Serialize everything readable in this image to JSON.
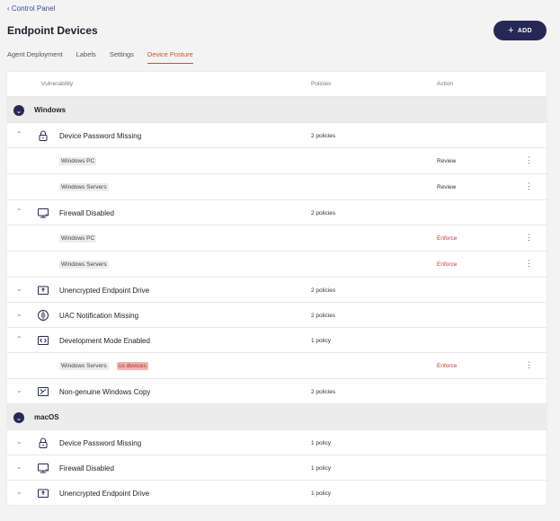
{
  "breadcrumb": "‹ Control Panel",
  "page_title": "Endpoint Devices",
  "add_button": {
    "label": "ADD",
    "icon": "plus-icon"
  },
  "tabs": [
    {
      "label": "Agent Deployment",
      "active": false
    },
    {
      "label": "Labels",
      "active": false
    },
    {
      "label": "Settings",
      "active": false
    },
    {
      "label": "Device Posture",
      "active": true
    }
  ],
  "table": {
    "columns": {
      "vulnerability": "Vulnerability",
      "policies": "Policies",
      "action": "Action"
    },
    "groups": [
      {
        "name": "Windows",
        "toggle_icon": "chevron-down-icon"
      },
      {
        "name": "macOS",
        "toggle_icon": "chevron-down-icon"
      }
    ],
    "rows": [
      {
        "kind": "group",
        "group": 0
      },
      {
        "kind": "vuln",
        "name": "Device Password Missing",
        "icon": "lock-icon",
        "policies": "2 policies",
        "expanded": true
      },
      {
        "kind": "sub",
        "tags": [
          "Windows PC"
        ],
        "action": "Review"
      },
      {
        "kind": "sub",
        "tags": [
          "Windows Servers"
        ],
        "action": "Review"
      },
      {
        "kind": "vuln",
        "name": "Firewall Disabled",
        "icon": "monitor-icon",
        "policies": "2 policies",
        "expanded": true
      },
      {
        "kind": "sub",
        "tags": [
          "Windows PC"
        ],
        "action": "Enforce"
      },
      {
        "kind": "sub",
        "tags": [
          "Windows Servers"
        ],
        "action": "Enforce"
      },
      {
        "kind": "vuln",
        "name": "Unencrypted Endpoint Drive",
        "icon": "drive-icon",
        "policies": "2 policies",
        "expanded": false
      },
      {
        "kind": "vuln",
        "name": "UAC Notification Missing",
        "icon": "shield-icon",
        "policies": "2 policies",
        "expanded": false
      },
      {
        "kind": "vuln",
        "name": "Development Mode Enabled",
        "icon": "code-icon",
        "policies": "1 policy",
        "expanded": true
      },
      {
        "kind": "sub",
        "tags": [
          "Windows Servers",
          "us devices"
        ],
        "action": "Enforce"
      },
      {
        "kind": "vuln",
        "name": "Non-genuine Windows Copy",
        "icon": "certificate-icon",
        "policies": "2 policies",
        "expanded": false
      },
      {
        "kind": "group",
        "group": 1
      },
      {
        "kind": "vuln",
        "name": "Device Password Missing",
        "icon": "lock-icon",
        "policies": "1 policy",
        "expanded": false
      },
      {
        "kind": "vuln",
        "name": "Firewall Disabled",
        "icon": "monitor-icon",
        "policies": "1 policy",
        "expanded": false
      },
      {
        "kind": "vuln",
        "name": "Unencrypted Endpoint Drive",
        "icon": "drive-icon",
        "policies": "1 policy",
        "expanded": false
      }
    ]
  },
  "colors": {
    "accent": "#262954",
    "active_tab": "#c2562a",
    "enforce": "#c83a30",
    "tag_highlight": "#f2b3ae"
  }
}
